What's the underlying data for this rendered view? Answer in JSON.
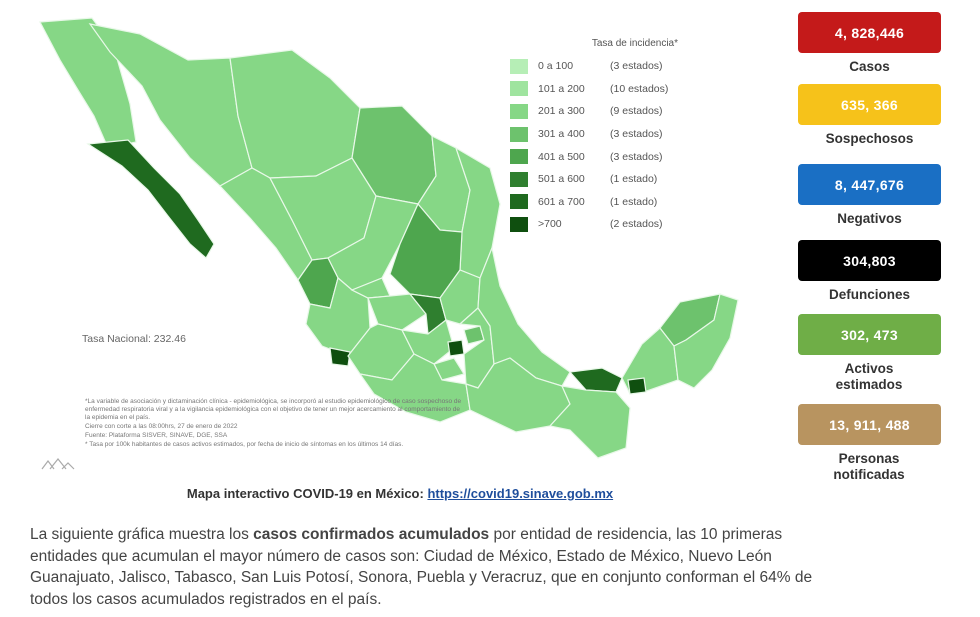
{
  "map": {
    "legend_title": "Tasa de incidencia*",
    "legend": [
      {
        "range": "0 a   100",
        "count": "(3 estados)",
        "color": "#b6eeb6"
      },
      {
        "range": "101 a  200",
        "count": "(10 estados)",
        "color": "#9fe49f"
      },
      {
        "range": "201 a  300",
        "count": "(9 estados)",
        "color": "#86d786"
      },
      {
        "range": "301 a  400",
        "count": "(3 estados)",
        "color": "#6dc26d"
      },
      {
        "range": "401 a  500",
        "count": "(3 estados)",
        "color": "#4ea64e"
      },
      {
        "range": "501 a  600",
        "count": "(1 estado)",
        "color": "#2f7f2f"
      },
      {
        "range": "601 a  700",
        "count": "(1 estado)",
        "color": "#1f6a1f"
      },
      {
        "range": ">700",
        "count": "(2 estados)",
        "color": "#0f4f0f"
      }
    ],
    "national_rate": "Tasa Nacional: 232.46",
    "notes": [
      "*La variable de asociación y dictaminación clínica - epidemiológica, se incorporó al estudio epidemiológico de caso sospechoso de enfermedad respiratoria viral y a la vigilancia epidemiológica con el objetivo de tener un mejor acercamiento al comportamiento de la epidemia en el país.",
      "Cierre con corte a las 08:00hrs, 27 de enero de 2022",
      "Fuente: Plataforma SISVER, SINAVE, DGE, SSA",
      "* Tasa por 100k habitantes de casos activos estimados, por fecha de inicio de síntomas en los últimos 14 días."
    ]
  },
  "stats": [
    {
      "value": "4, 828,446",
      "label": "Casos",
      "bg": "#c41a1a",
      "fg": "#ffffff"
    },
    {
      "value": "635, 366",
      "label": "Sospechosos",
      "bg": "#f6c21a",
      "fg": "#ffffff"
    },
    {
      "value": "8, 447,676",
      "label": "Negativos",
      "bg": "#1a6fc4",
      "fg": "#ffffff"
    },
    {
      "value": "304,803",
      "label": "Defunciones",
      "bg": "#000000",
      "fg": "#ffffff"
    },
    {
      "value": "302, 473",
      "label": "Activos estimados",
      "bg": "#6fae47",
      "fg": "#ffffff"
    },
    {
      "value": "13, 911, 488",
      "label": "Personas notificadas",
      "bg": "#b89460",
      "fg": "#ffffff"
    }
  ],
  "map_link": {
    "prefix": "Mapa interactivo COVID-19 en México: ",
    "url": "https://covid19.sinave.gob.mx"
  },
  "paragraph": {
    "line1_pre": "La siguiente gráfica muestra los ",
    "line1_bold": "casos confirmados acumulados",
    "line1_post": " por entidad de residencia, las 10 primeras",
    "line2": "entidades que acumulan el mayor número de casos son: Ciudad de México, Estado de México, Nuevo León",
    "line3": "Guanajuato, Jalisco, Tabasco, San Luis Potosí, Sonora, Puebla y Veracruz, que en conjunto conforman el 64% de",
    "line4": "todos los casos acumulados registrados en el país."
  }
}
